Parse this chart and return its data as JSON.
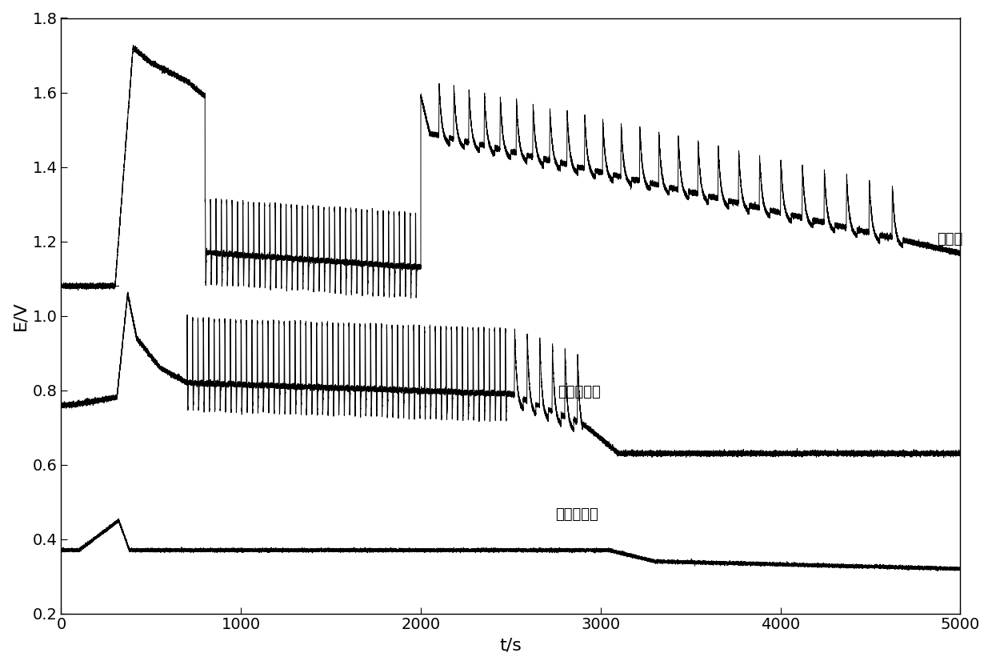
{
  "title": "",
  "xlabel": "t/s",
  "ylabel": "E/V",
  "xlim": [
    0,
    5000
  ],
  "ylim": [
    0.2,
    1.8
  ],
  "yticks": [
    0.2,
    0.4,
    0.6,
    0.8,
    1.0,
    1.2,
    1.4,
    1.6,
    1.8
  ],
  "xticks": [
    0,
    1000,
    2000,
    3000,
    4000,
    5000
  ],
  "label1": "白刺果",
  "label2": "青海黑枸杞",
  "label3": "新疆黑枸杞",
  "line_color": "#000000",
  "background_color": "#ffffff",
  "annotation_fontsize": 13,
  "hline_y": 1.08,
  "hline_xmax": 0.065
}
